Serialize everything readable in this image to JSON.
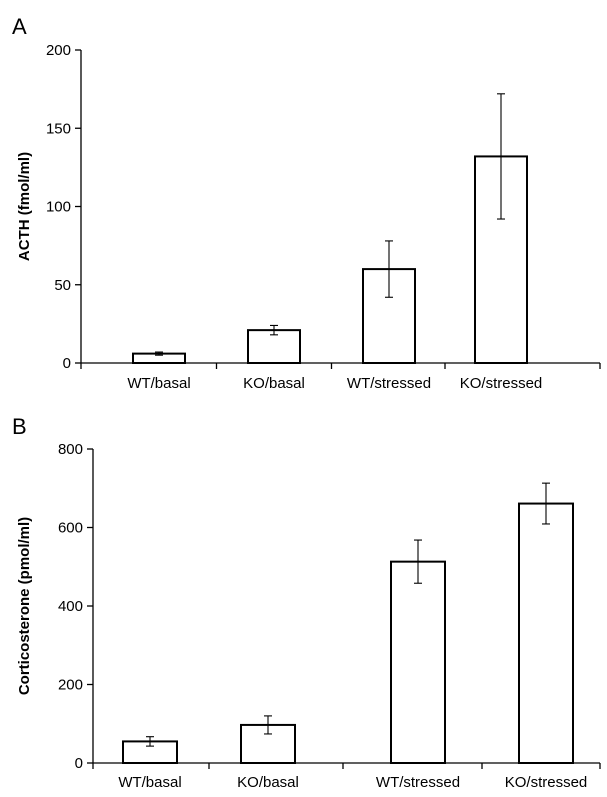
{
  "chart_data": [
    {
      "type": "bar",
      "panel_label": "A",
      "categories": [
        "WT/basal",
        "KO/basal",
        "WT/stressed",
        "KO/stressed"
      ],
      "values": [
        6,
        21,
        60,
        132
      ],
      "errors": [
        1,
        3,
        18,
        40
      ],
      "ylabel": "ACTH (fmol/ml)",
      "ylim": [
        0,
        200
      ],
      "yticks": [
        0,
        50,
        100,
        150,
        200
      ],
      "grid": false,
      "bar_fill": "#ffffff",
      "bar_stroke": "#000000"
    },
    {
      "type": "bar",
      "panel_label": "B",
      "categories": [
        "WT/basal",
        "KO/basal",
        "WT/stressed",
        "KO/stressed"
      ],
      "values": [
        55,
        97,
        513,
        661
      ],
      "errors": [
        12,
        23,
        55,
        52
      ],
      "ylabel": "Corticosterone (pmol/ml)",
      "ylim": [
        0,
        800
      ],
      "yticks": [
        0,
        200,
        400,
        600,
        800
      ],
      "grid": false,
      "bar_fill": "#ffffff",
      "bar_stroke": "#000000"
    }
  ]
}
